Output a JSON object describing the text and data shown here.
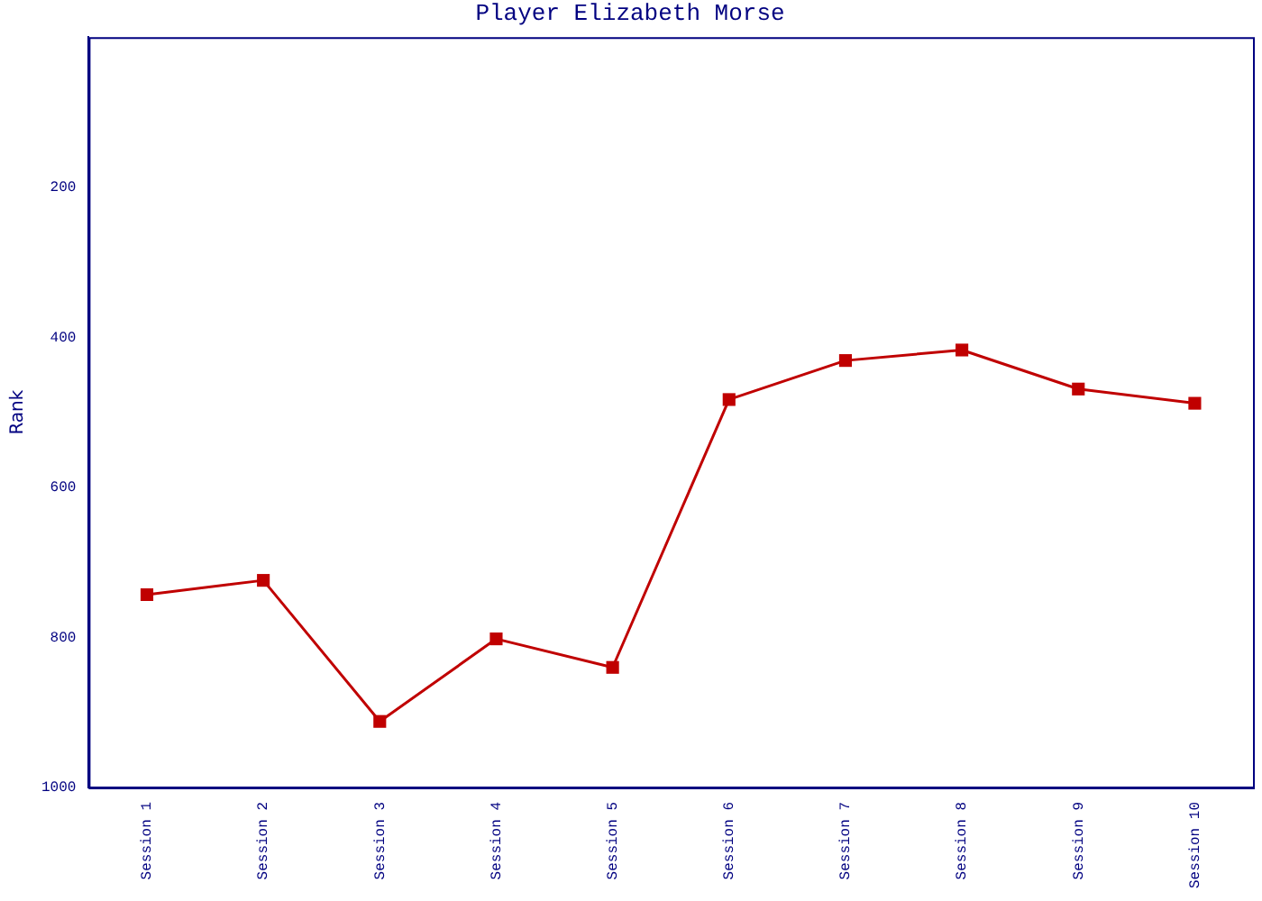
{
  "chart_data": {
    "type": "line",
    "title": "Player Elizabeth Morse",
    "ylabel": "Rank",
    "categories": [
      "Session 1",
      "Session 2",
      "Session 3",
      "Session 4",
      "Session 5",
      "Session 6",
      "Session 7",
      "Session 8",
      "Session 9",
      "Session 10"
    ],
    "series": [
      {
        "color": "#c00000",
        "values": [
          743,
          724,
          912,
          802,
          840,
          483,
          431,
          417,
          469,
          488
        ]
      }
    ],
    "ylim": [
      1000,
      0
    ],
    "yticks": [
      200,
      400,
      600,
      800,
      1000
    ],
    "grid": false,
    "legend": false,
    "marker": "square",
    "line_style": "solid"
  }
}
